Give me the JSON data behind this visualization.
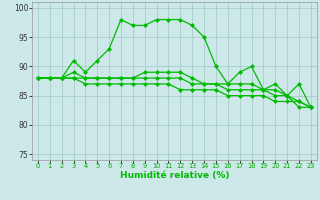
{
  "title": "",
  "xlabel": "Humidité relative (%)",
  "ylabel": "",
  "background_color": "#cce8e8",
  "grid_color": "#aacccc",
  "line_color": "#00bb00",
  "xlim": [
    -0.5,
    23.5
  ],
  "ylim": [
    74,
    101
  ],
  "yticks": [
    75,
    80,
    85,
    90,
    95,
    100
  ],
  "xticks": [
    0,
    1,
    2,
    3,
    4,
    5,
    6,
    7,
    8,
    9,
    10,
    11,
    12,
    13,
    14,
    15,
    16,
    17,
    18,
    19,
    20,
    21,
    22,
    23
  ],
  "series": {
    "line1": [
      88,
      88,
      88,
      91,
      89,
      91,
      93,
      98,
      97,
      97,
      98,
      98,
      98,
      97,
      95,
      90,
      87,
      89,
      90,
      86,
      87,
      85,
      83,
      83
    ],
    "line2": [
      88,
      88,
      88,
      89,
      88,
      88,
      88,
      88,
      88,
      89,
      89,
      89,
      89,
      88,
      87,
      87,
      87,
      87,
      87,
      86,
      86,
      85,
      87,
      83
    ],
    "line3": [
      88,
      88,
      88,
      88,
      88,
      88,
      88,
      88,
      88,
      88,
      88,
      88,
      88,
      87,
      87,
      87,
      86,
      86,
      86,
      86,
      85,
      85,
      84,
      83
    ],
    "line4": [
      88,
      88,
      88,
      88,
      87,
      87,
      87,
      87,
      87,
      87,
      87,
      87,
      86,
      86,
      86,
      86,
      85,
      85,
      85,
      85,
      84,
      84,
      84,
      83
    ]
  }
}
